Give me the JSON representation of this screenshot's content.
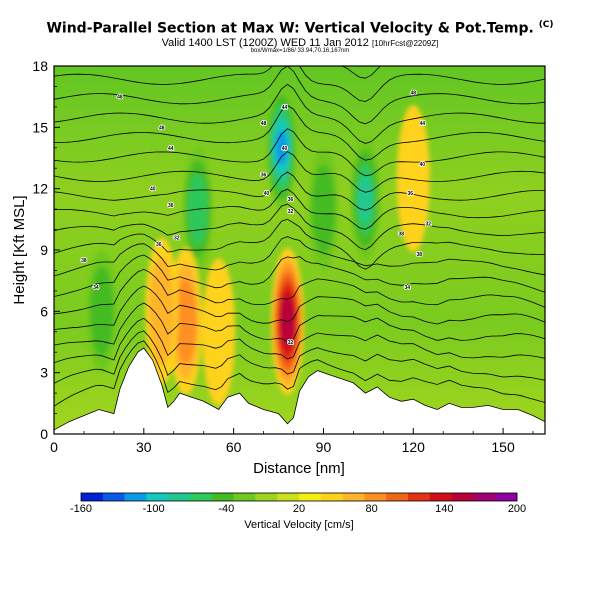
{
  "header": {
    "title": "Wind-Parallel Section at Max W: Vertical Velocity & Pot.Temp.",
    "copyright": "(C)",
    "subtitle_main": "Valid 1400 LST (1200Z) WED 11 Jan 2012",
    "subtitle_small": "[10hrFcst@2209Z]",
    "meta_line": "box/Wmax=1/86/ 33.94,70.16,167nm"
  },
  "colorbar": {
    "label": "Vertical Velocity [cm/s]",
    "tick_labels": [
      "-160",
      "-100",
      "-40",
      "20",
      "80",
      "140",
      "200"
    ],
    "colors": [
      "#0022d6",
      "#0a5ae6",
      "#0c9ae8",
      "#12c8c0",
      "#20c890",
      "#2fc85a",
      "#44bb22",
      "#6ec81e",
      "#9cd41f",
      "#c8e11c",
      "#f2ee14",
      "#ffd21a",
      "#ffb42a",
      "#ff9020",
      "#f26418",
      "#e23212",
      "#d20e18",
      "#b8003a",
      "#a00070",
      "#9000a0"
    ]
  },
  "chart_data": {
    "type": "heatmap",
    "title": "Wind-Parallel Section at Max W: Vertical Velocity & Pot.Temp.",
    "xlabel": "Distance [nm]",
    "ylabel": "Height [Kft MSL]",
    "xlim": [
      0,
      164
    ],
    "ylim": [
      0,
      18
    ],
    "xticks": [
      0,
      30,
      60,
      90,
      120,
      150
    ],
    "yticks": [
      0,
      3,
      6,
      9,
      12,
      15,
      18
    ],
    "colorbar_range": [
      -160,
      200
    ],
    "colorbar_ticks": [
      -160,
      -100,
      -40,
      20,
      80,
      140,
      200
    ],
    "terrain": {
      "x": [
        0,
        5,
        10,
        15,
        20,
        22,
        25,
        28,
        30,
        33,
        36,
        38,
        40,
        42,
        46,
        50,
        55,
        58,
        62,
        65,
        70,
        75,
        78,
        80,
        82,
        85,
        88,
        92,
        96,
        100,
        104,
        108,
        112,
        116,
        120,
        124,
        128,
        132,
        136,
        140,
        145,
        150,
        155,
        160,
        164
      ],
      "height": [
        0.2,
        0.6,
        0.9,
        1.2,
        1.0,
        2.2,
        3.3,
        4.0,
        4.2,
        3.6,
        2.4,
        1.3,
        1.6,
        2.0,
        1.8,
        1.6,
        1.2,
        1.8,
        2.0,
        1.5,
        1.2,
        1.0,
        0.5,
        0.8,
        2.1,
        2.8,
        3.1,
        2.9,
        2.7,
        2.5,
        2.0,
        2.3,
        1.8,
        1.6,
        1.7,
        1.4,
        1.2,
        1.5,
        1.3,
        1.3,
        1.4,
        1.2,
        1.2,
        0.9,
        0.6
      ]
    },
    "updraft_centers": [
      {
        "x": 78,
        "height": 5.5,
        "velocity": 150
      },
      {
        "x": 44,
        "height": 5.5,
        "velocity": 90
      },
      {
        "x": 36,
        "height": 6.0,
        "velocity": 60
      },
      {
        "x": 55,
        "height": 5.0,
        "velocity": 40
      },
      {
        "x": 120,
        "height": 12.5,
        "velocity": 40
      }
    ],
    "downdraft_centers": [
      {
        "x": 76,
        "height": 14.0,
        "velocity": -110
      },
      {
        "x": 104,
        "height": 11.5,
        "velocity": -80
      },
      {
        "x": 48,
        "height": 11.0,
        "velocity": -70
      },
      {
        "x": 16,
        "height": 6.0,
        "velocity": -50
      },
      {
        "x": 90,
        "height": 11.0,
        "velocity": -50
      }
    ],
    "contour_labels": [
      {
        "x": 10,
        "height": 8.5,
        "text": "38"
      },
      {
        "x": 14,
        "height": 7.2,
        "text": "34"
      },
      {
        "x": 36,
        "height": 15.0,
        "text": "48"
      },
      {
        "x": 39,
        "height": 14.0,
        "text": "44"
      },
      {
        "x": 33,
        "height": 12.0,
        "text": "40"
      },
      {
        "x": 39,
        "height": 11.2,
        "text": "36"
      },
      {
        "x": 35,
        "height": 9.3,
        "text": "36"
      },
      {
        "x": 41,
        "height": 9.6,
        "text": "32"
      },
      {
        "x": 22,
        "height": 16.5,
        "text": "48"
      },
      {
        "x": 77,
        "height": 16.0,
        "text": "44"
      },
      {
        "x": 70,
        "height": 15.2,
        "text": "48"
      },
      {
        "x": 77,
        "height": 14.0,
        "text": "40"
      },
      {
        "x": 70,
        "height": 12.7,
        "text": "36"
      },
      {
        "x": 71,
        "height": 11.8,
        "text": "40"
      },
      {
        "x": 79,
        "height": 11.5,
        "text": "36"
      },
      {
        "x": 79,
        "height": 10.9,
        "text": "32"
      },
      {
        "x": 79,
        "height": 4.5,
        "text": "32"
      },
      {
        "x": 120,
        "height": 16.7,
        "text": "48"
      },
      {
        "x": 123,
        "height": 15.2,
        "text": "44"
      },
      {
        "x": 123,
        "height": 13.2,
        "text": "40"
      },
      {
        "x": 119,
        "height": 11.8,
        "text": "36"
      },
      {
        "x": 125,
        "height": 10.3,
        "text": "32"
      },
      {
        "x": 116,
        "height": 9.8,
        "text": "38"
      },
      {
        "x": 122,
        "height": 8.8,
        "text": "38"
      },
      {
        "x": 118,
        "height": 7.2,
        "text": "34"
      }
    ]
  }
}
